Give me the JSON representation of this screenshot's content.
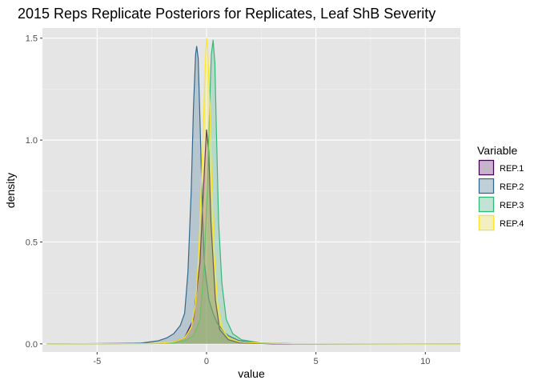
{
  "chart_data": {
    "type": "area",
    "title": "2015 Reps Replicate Posteriors for Replicates, Leaf ShB Severity",
    "xlabel": "value",
    "ylabel": "density",
    "xlim": [
      -7.5,
      11.6
    ],
    "ylim": [
      -0.04,
      1.55
    ],
    "x_ticks": [
      -5,
      0,
      5,
      10
    ],
    "x_tick_labels": [
      "-5",
      "0",
      "5",
      "10"
    ],
    "y_ticks": [
      0.0,
      0.5,
      1.0,
      1.5
    ],
    "y_tick_labels": [
      "0.0",
      "0.5",
      "1.0",
      "1.5"
    ],
    "grid": true,
    "legend_title": "Variable",
    "legend_position": "right",
    "support": [
      -7.3,
      11.6
    ],
    "series": [
      {
        "name": "REP.1",
        "color": "#440154",
        "points": [
          [
            -7.3,
            0
          ],
          [
            -2,
            0.003
          ],
          [
            -1.5,
            0.01
          ],
          [
            -1.0,
            0.03
          ],
          [
            -0.6,
            0.12
          ],
          [
            -0.3,
            0.4
          ],
          [
            -0.1,
            0.85
          ],
          [
            0.0,
            1.05
          ],
          [
            0.1,
            0.95
          ],
          [
            0.2,
            0.6
          ],
          [
            0.4,
            0.22
          ],
          [
            0.6,
            0.07
          ],
          [
            1.0,
            0.02
          ],
          [
            1.5,
            0.005
          ],
          [
            3,
            0
          ],
          [
            11.6,
            0
          ]
        ]
      },
      {
        "name": "REP.2",
        "color": "#31688e",
        "points": [
          [
            -7.3,
            0
          ],
          [
            -4,
            0.001
          ],
          [
            -3,
            0.004
          ],
          [
            -2.2,
            0.015
          ],
          [
            -1.8,
            0.03
          ],
          [
            -1.5,
            0.05
          ],
          [
            -1.2,
            0.09
          ],
          [
            -1.0,
            0.15
          ],
          [
            -0.85,
            0.35
          ],
          [
            -0.7,
            0.75
          ],
          [
            -0.6,
            1.15
          ],
          [
            -0.5,
            1.42
          ],
          [
            -0.45,
            1.46
          ],
          [
            -0.38,
            1.4
          ],
          [
            -0.3,
            1.1
          ],
          [
            -0.2,
            0.7
          ],
          [
            -0.1,
            0.4
          ],
          [
            0.1,
            0.22
          ],
          [
            0.3,
            0.15
          ],
          [
            0.5,
            0.1
          ],
          [
            0.8,
            0.06
          ],
          [
            1.0,
            0.04
          ],
          [
            1.5,
            0.015
          ],
          [
            2.5,
            0.004
          ],
          [
            4,
            0.001
          ],
          [
            11.6,
            0
          ]
        ]
      },
      {
        "name": "REP.3",
        "color": "#35b779",
        "points": [
          [
            -7.3,
            0
          ],
          [
            -2.5,
            0.001
          ],
          [
            -1.5,
            0.005
          ],
          [
            -1.0,
            0.015
          ],
          [
            -0.6,
            0.04
          ],
          [
            -0.3,
            0.12
          ],
          [
            -0.1,
            0.4
          ],
          [
            0.05,
            0.8
          ],
          [
            0.15,
            1.2
          ],
          [
            0.22,
            1.42
          ],
          [
            0.3,
            1.49
          ],
          [
            0.38,
            1.38
          ],
          [
            0.45,
            1.05
          ],
          [
            0.55,
            0.6
          ],
          [
            0.7,
            0.3
          ],
          [
            0.9,
            0.12
          ],
          [
            1.2,
            0.05
          ],
          [
            1.6,
            0.02
          ],
          [
            2.5,
            0.004
          ],
          [
            4,
            0.001
          ],
          [
            11.6,
            0
          ]
        ]
      },
      {
        "name": "REP.4",
        "color": "#fde725",
        "points": [
          [
            -7.3,
            0
          ],
          [
            -3,
            0.001
          ],
          [
            -2,
            0.004
          ],
          [
            -1.5,
            0.01
          ],
          [
            -1.0,
            0.03
          ],
          [
            -0.7,
            0.08
          ],
          [
            -0.5,
            0.2
          ],
          [
            -0.35,
            0.45
          ],
          [
            -0.25,
            0.75
          ],
          [
            -0.15,
            1.05
          ],
          [
            -0.08,
            1.3
          ],
          [
            0.0,
            1.5
          ],
          [
            0.05,
            1.45
          ],
          [
            0.15,
            1.15
          ],
          [
            0.25,
            0.75
          ],
          [
            0.35,
            0.45
          ],
          [
            0.5,
            0.2
          ],
          [
            0.7,
            0.08
          ],
          [
            1.0,
            0.03
          ],
          [
            1.5,
            0.01
          ],
          [
            2.5,
            0.003
          ],
          [
            4,
            0.001
          ],
          [
            11.6,
            0
          ]
        ]
      }
    ]
  }
}
